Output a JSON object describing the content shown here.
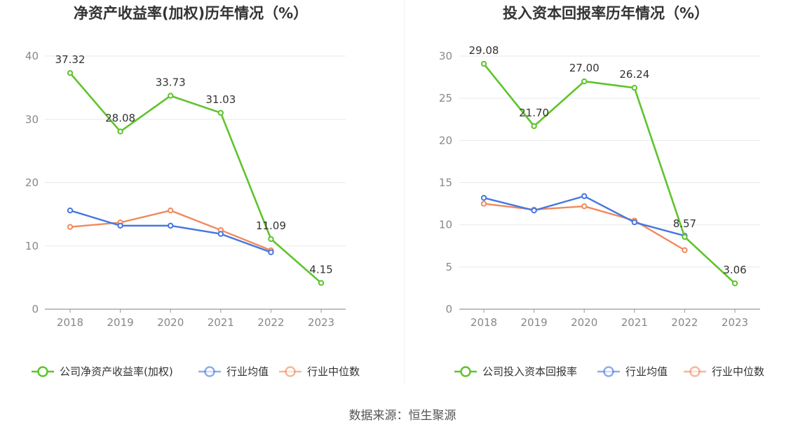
{
  "source": "数据来源：恒生聚源",
  "colors": {
    "company": "#5ec42c",
    "avg": "#4677e0",
    "median": "#f0895e",
    "grid": "#e6e9f0",
    "axis": "#999999"
  },
  "chart_data": [
    {
      "type": "line",
      "title": "净资产收益率(加权)历年情况（%）",
      "categories": [
        "2018",
        "2019",
        "2020",
        "2021",
        "2022",
        "2023"
      ],
      "ylim": [
        0,
        40
      ],
      "yticks": [
        0,
        10,
        20,
        30,
        40
      ],
      "grid": true,
      "legend_position": "bottom",
      "series": [
        {
          "name": "公司净资产收益率(加权)",
          "key": "company",
          "values": [
            37.32,
            28.08,
            33.73,
            31.03,
            11.09,
            4.15
          ],
          "labels": [
            "37.32",
            "28.08",
            "33.73",
            "31.03",
            "11.09",
            "4.15"
          ]
        },
        {
          "name": "行业均值",
          "key": "avg",
          "values": [
            15.6,
            13.2,
            13.2,
            11.9,
            9.0,
            null
          ]
        },
        {
          "name": "行业中位数",
          "key": "median",
          "values": [
            13.0,
            13.7,
            15.6,
            12.5,
            9.3,
            null
          ]
        }
      ]
    },
    {
      "type": "line",
      "title": "投入资本回报率历年情况（%）",
      "categories": [
        "2018",
        "2019",
        "2020",
        "2021",
        "2022",
        "2023"
      ],
      "ylim": [
        0,
        30
      ],
      "yticks": [
        0,
        5,
        10,
        15,
        20,
        25,
        30
      ],
      "grid": true,
      "legend_position": "bottom",
      "series": [
        {
          "name": "公司投入资本回报率",
          "key": "company",
          "values": [
            29.08,
            21.7,
            27.0,
            26.24,
            8.57,
            3.06
          ],
          "labels": [
            "29.08",
            "21.70",
            "27.00",
            "26.24",
            "8.57",
            "3.06"
          ]
        },
        {
          "name": "行业均值",
          "key": "avg",
          "values": [
            13.2,
            11.7,
            13.4,
            10.3,
            8.7,
            null
          ]
        },
        {
          "name": "行业中位数",
          "key": "median",
          "values": [
            12.5,
            11.8,
            12.2,
            10.5,
            7.0,
            null
          ]
        }
      ]
    }
  ]
}
